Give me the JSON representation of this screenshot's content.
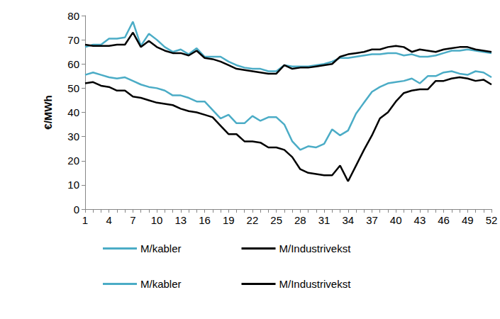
{
  "chart_data": {
    "type": "line",
    "y_label": "€/MWh",
    "categories": [
      1,
      null,
      null,
      4,
      null,
      null,
      7,
      null,
      null,
      10,
      null,
      null,
      13,
      null,
      null,
      16,
      null,
      null,
      19,
      null,
      null,
      22,
      null,
      null,
      25,
      null,
      null,
      28,
      null,
      null,
      31,
      null,
      null,
      34,
      null,
      null,
      37,
      null,
      null,
      40,
      null,
      null,
      43,
      null,
      null,
      46,
      null,
      null,
      49,
      null,
      null,
      52
    ],
    "ylim": [
      0,
      80
    ],
    "yticks": [
      0,
      10,
      20,
      30,
      40,
      50,
      60,
      70,
      80
    ],
    "grid": false,
    "legend": "bottom",
    "series": [
      {
        "name": "M/kabler",
        "color": "#4bacc6",
        "values": [
          67,
          68,
          68,
          70.5,
          70.5,
          71,
          77.5,
          67.5,
          72.5,
          70,
          67,
          65,
          66,
          64,
          66.5,
          63,
          63,
          63,
          61,
          59.5,
          58.5,
          58,
          58,
          57,
          57,
          59.5,
          59,
          59,
          59,
          59.5,
          60,
          61,
          62.5,
          62.5,
          63,
          63.5,
          64,
          64,
          64.5,
          64.5,
          63.5,
          64,
          63,
          63,
          63.5,
          64.5,
          65.5,
          65.5,
          66,
          65.5,
          65,
          64.5
        ]
      },
      {
        "name": "M/Industrivekst",
        "color": "#000000",
        "values": [
          68,
          67.5,
          67.5,
          67.5,
          68,
          68,
          73,
          67,
          69.5,
          67,
          65.5,
          64.5,
          64.5,
          63.5,
          65.5,
          62.5,
          62,
          61,
          59.5,
          58,
          57.5,
          57,
          56.5,
          56,
          56,
          59.5,
          58,
          58.5,
          58.5,
          59,
          59.5,
          60,
          63,
          64,
          64.5,
          65,
          66,
          66,
          67,
          67.5,
          67,
          65,
          66,
          65.5,
          65,
          66,
          66.5,
          67,
          67,
          66,
          65.5,
          65
        ]
      },
      {
        "name": "M/kabler",
        "color": "#4bacc6",
        "values": [
          55.5,
          56.5,
          55.5,
          54.5,
          54,
          54.5,
          53,
          51.5,
          50.5,
          50,
          49,
          47,
          47,
          46,
          44.5,
          44.5,
          41,
          37.5,
          39,
          35.5,
          35.5,
          38.5,
          36.5,
          38,
          38,
          35,
          28,
          24.5,
          26,
          25.5,
          27,
          33,
          30.5,
          32.5,
          39.5,
          44,
          48.5,
          50.5,
          52,
          52.5,
          53,
          54,
          52,
          55,
          55,
          56.5,
          57,
          56,
          55.5,
          57,
          56.5,
          54.5
        ]
      },
      {
        "name": "M/Industrivekst",
        "color": "#000000",
        "values": [
          52,
          52.5,
          51,
          50.5,
          49,
          49,
          46.5,
          46,
          45,
          44,
          43.5,
          43,
          41.5,
          40.5,
          40,
          39,
          38,
          34.5,
          31,
          31,
          28,
          28,
          27.5,
          25.5,
          25.5,
          24.5,
          21.5,
          16.5,
          15,
          14.5,
          14,
          14,
          18,
          11.5,
          18,
          24.5,
          30.5,
          37.5,
          40,
          44.5,
          48,
          49,
          49.5,
          49.5,
          53,
          53,
          54,
          54.5,
          54,
          53,
          53.5,
          51.5
        ]
      }
    ]
  }
}
